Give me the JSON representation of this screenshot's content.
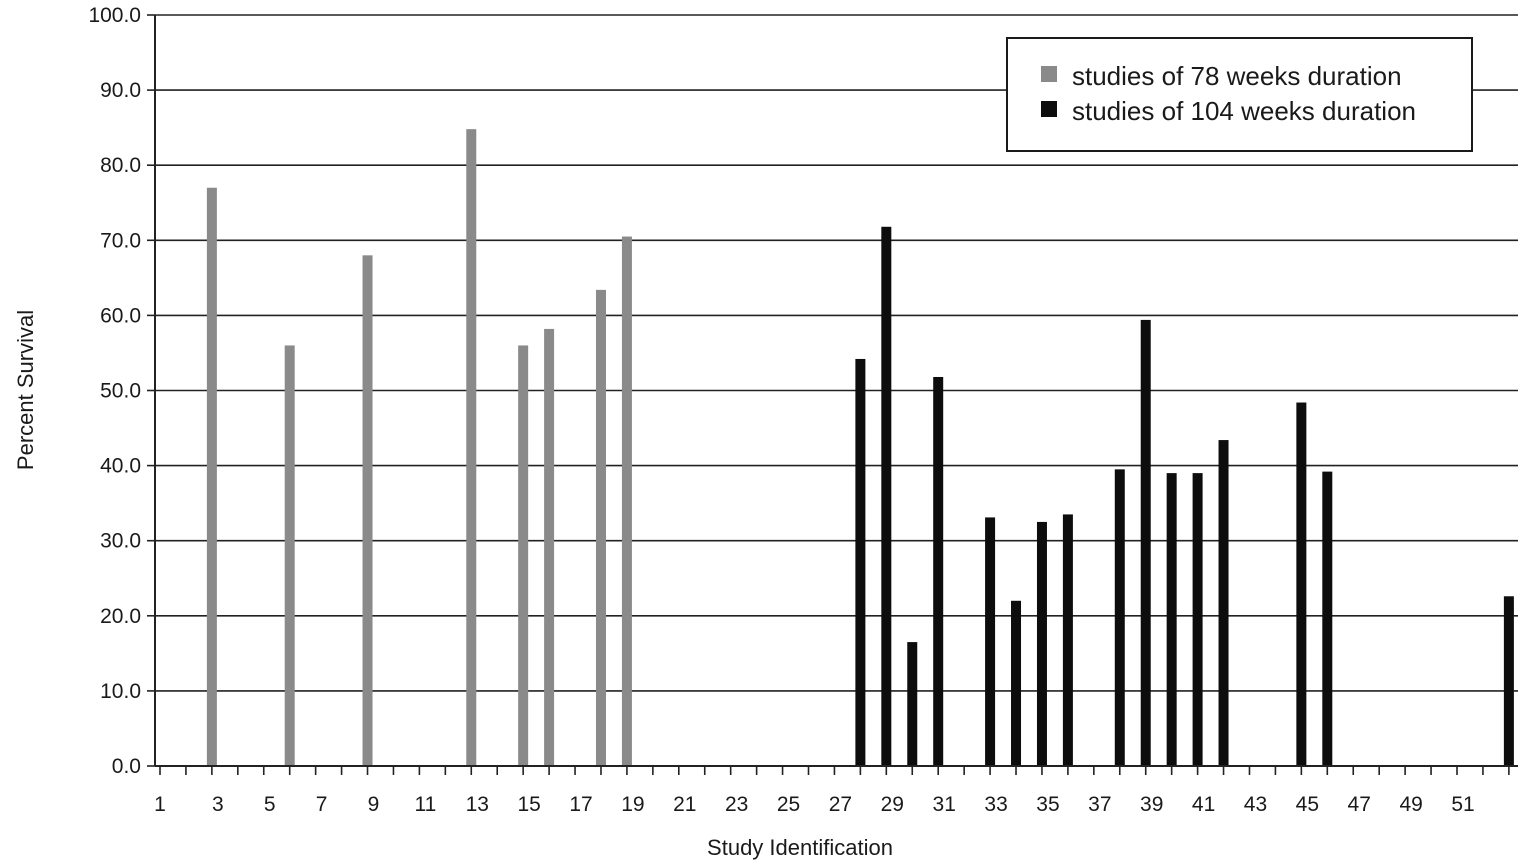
{
  "chart_data": {
    "type": "bar",
    "title": "",
    "xlabel": "Study Identification",
    "ylabel": "Percent Survival",
    "ylim": [
      0,
      100
    ],
    "y_ticks": [
      0,
      10,
      20,
      30,
      40,
      50,
      60,
      70,
      80,
      90,
      100
    ],
    "y_tick_format_decimals": 1,
    "xlim": [
      1,
      53
    ],
    "x_tick_labels": [
      1,
      3,
      5,
      7,
      9,
      11,
      13,
      15,
      17,
      19,
      21,
      23,
      25,
      27,
      29,
      31,
      33,
      35,
      37,
      39,
      41,
      43,
      45,
      47,
      49,
      51
    ],
    "grid": true,
    "legend_position": "top-right",
    "series": [
      {
        "name": "studies of 78 weeks duration",
        "color": "#8a8a8a",
        "points": [
          {
            "x": 3,
            "y": 77.0
          },
          {
            "x": 6,
            "y": 56.0
          },
          {
            "x": 9,
            "y": 68.0
          },
          {
            "x": 13,
            "y": 84.8
          },
          {
            "x": 15,
            "y": 56.0
          },
          {
            "x": 16,
            "y": 58.2
          },
          {
            "x": 18,
            "y": 63.4
          },
          {
            "x": 19,
            "y": 70.5
          }
        ]
      },
      {
        "name": "studies of 104 weeks duration",
        "color": "#0d0d0d",
        "points": [
          {
            "x": 28,
            "y": 54.2
          },
          {
            "x": 29,
            "y": 71.8
          },
          {
            "x": 30,
            "y": 16.5
          },
          {
            "x": 31,
            "y": 51.8
          },
          {
            "x": 33,
            "y": 33.1
          },
          {
            "x": 34,
            "y": 22.0
          },
          {
            "x": 35,
            "y": 32.5
          },
          {
            "x": 36,
            "y": 33.5
          },
          {
            "x": 38,
            "y": 39.5
          },
          {
            "x": 39,
            "y": 59.4
          },
          {
            "x": 40,
            "y": 39.0
          },
          {
            "x": 41,
            "y": 39.0
          },
          {
            "x": 42,
            "y": 43.4
          },
          {
            "x": 45,
            "y": 48.4
          },
          {
            "x": 46,
            "y": 39.2
          },
          {
            "x": 53,
            "y": 22.6
          }
        ]
      }
    ]
  }
}
